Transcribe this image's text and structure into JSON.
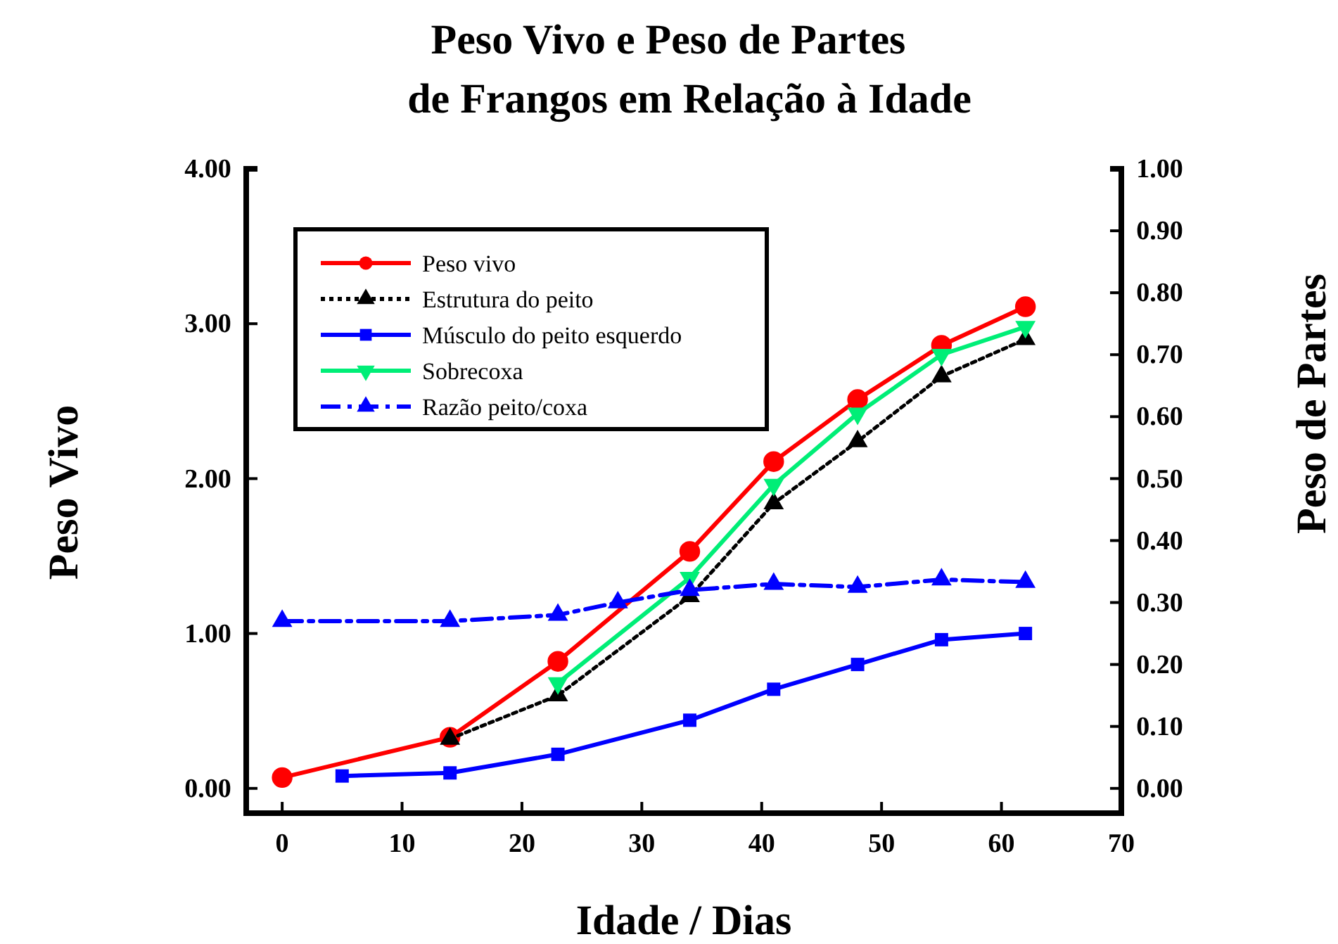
{
  "chart_data": {
    "type": "line",
    "title": "Peso Vivo e Peso de Partes",
    "subtitle": "de Frangos em Relação à Idade",
    "xlabel": "Idade / Dias",
    "ylabel": "Peso Vivo",
    "y2label": "Peso de Partes",
    "xlim": [
      -3,
      70
    ],
    "xticks": [
      0,
      10,
      20,
      30,
      40,
      50,
      60,
      70
    ],
    "ylim": [
      -0.16,
      4.0
    ],
    "yticks": [
      {
        "value": 0,
        "label": "0.00"
      },
      {
        "value": 1,
        "label": "1.00"
      },
      {
        "value": 2,
        "label": "2.00"
      },
      {
        "value": 3,
        "label": "3.00"
      },
      {
        "value": 4,
        "label": "4.00"
      }
    ],
    "y2lim": [
      -0.04,
      1.0
    ],
    "y2ticks": [
      {
        "value": 0,
        "label": "0.00"
      },
      {
        "value": 0.1,
        "label": "0.10"
      },
      {
        "value": 0.2,
        "label": "0.20"
      },
      {
        "value": 0.3,
        "label": "0.30"
      },
      {
        "value": 0.4,
        "label": "0.40"
      },
      {
        "value": 0.5,
        "label": "0.50"
      },
      {
        "value": 0.6,
        "label": "0.60"
      },
      {
        "value": 0.7,
        "label": "0.70"
      },
      {
        "value": 0.8,
        "label": "0.80"
      },
      {
        "value": 0.9,
        "label": "0.90"
      },
      {
        "value": 1,
        "label": "1.00"
      }
    ],
    "legend": "top left",
    "grid": false,
    "series": [
      {
        "name": "Peso vivo",
        "color": "#ff0000",
        "marker": "circle",
        "line_style": "solid",
        "x": [
          0,
          14,
          23,
          34,
          41,
          48,
          55,
          62
        ],
        "values": [
          0.07,
          0.33,
          0.82,
          1.53,
          2.11,
          2.51,
          2.86,
          3.11
        ]
      },
      {
        "name": "Estrutura do peito",
        "color": "#000000",
        "marker": "triangle",
        "line_style": "dotted",
        "axis": "y2",
        "x": [
          14,
          23,
          34,
          41,
          48,
          55,
          62
        ],
        "values": [
          0.08,
          0.15,
          0.31,
          0.46,
          0.56,
          0.665,
          0.725
        ]
      },
      {
        "name": "Músculo do peito esquerdo",
        "color": "#0000ff",
        "marker": "square",
        "line_style": "solid",
        "axis": "y2",
        "x": [
          5,
          14,
          23,
          34,
          41,
          48,
          55,
          62
        ],
        "values": [
          0.02,
          0.025,
          0.055,
          0.11,
          0.16,
          0.2,
          0.24,
          0.25
        ]
      },
      {
        "name": "Sobrecoxa",
        "color": "#00ee77",
        "marker": "triangle-down",
        "line_style": "solid",
        "axis": "y2",
        "x": [
          23,
          34,
          41,
          48,
          55,
          62
        ],
        "values": [
          0.17,
          0.34,
          0.49,
          0.605,
          0.7,
          0.745
        ]
      },
      {
        "name": "Razão peito/coxa",
        "color": "#0000ff",
        "marker": "triangle",
        "line_style": "dashed",
        "axis": "y2",
        "x": [
          0,
          14,
          23,
          28,
          34,
          41,
          48,
          55,
          62
        ],
        "values": [
          0.27,
          0.27,
          0.28,
          0.3,
          0.32,
          0.33,
          0.325,
          0.337,
          0.333
        ]
      }
    ]
  }
}
